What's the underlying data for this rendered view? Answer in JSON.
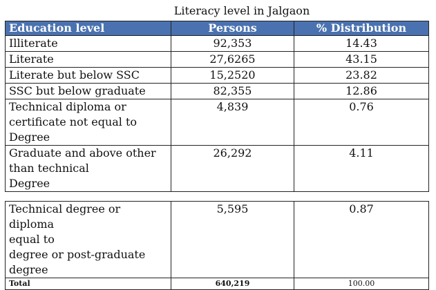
{
  "caption": "Literacy level in Jalgaon",
  "headers": [
    "Education level",
    "Persons",
    "% Distribution"
  ],
  "rows": [
    {
      "level": "Illiterate",
      "persons": "92,353",
      "pct": "14.43"
    },
    {
      "level": "Literate",
      "persons": "27,6265",
      "pct": "43.15"
    },
    {
      "level": "Literate but below SSC",
      "persons": "15,2520",
      "pct": "23.82"
    },
    {
      "level": "SSC but below graduate",
      "persons": "82,355",
      "pct": "12.86"
    },
    {
      "level": [
        "Technical diploma or",
        "certificate not equal to",
        "Degree"
      ],
      "persons": "4,839",
      "pct": "0.76"
    },
    {
      "level": [
        "Graduate and above other",
        "than technical",
        "Degree"
      ],
      "persons": "26,292",
      "pct": "4.11"
    },
    {
      "level": [
        "Technical degree or diploma",
        "equal to",
        "degree or post-graduate",
        "degree"
      ],
      "persons": "5,595",
      "pct": "0.87"
    }
  ],
  "total": {
    "label": "Total",
    "persons": "640,219",
    "pct": "100.00"
  }
}
